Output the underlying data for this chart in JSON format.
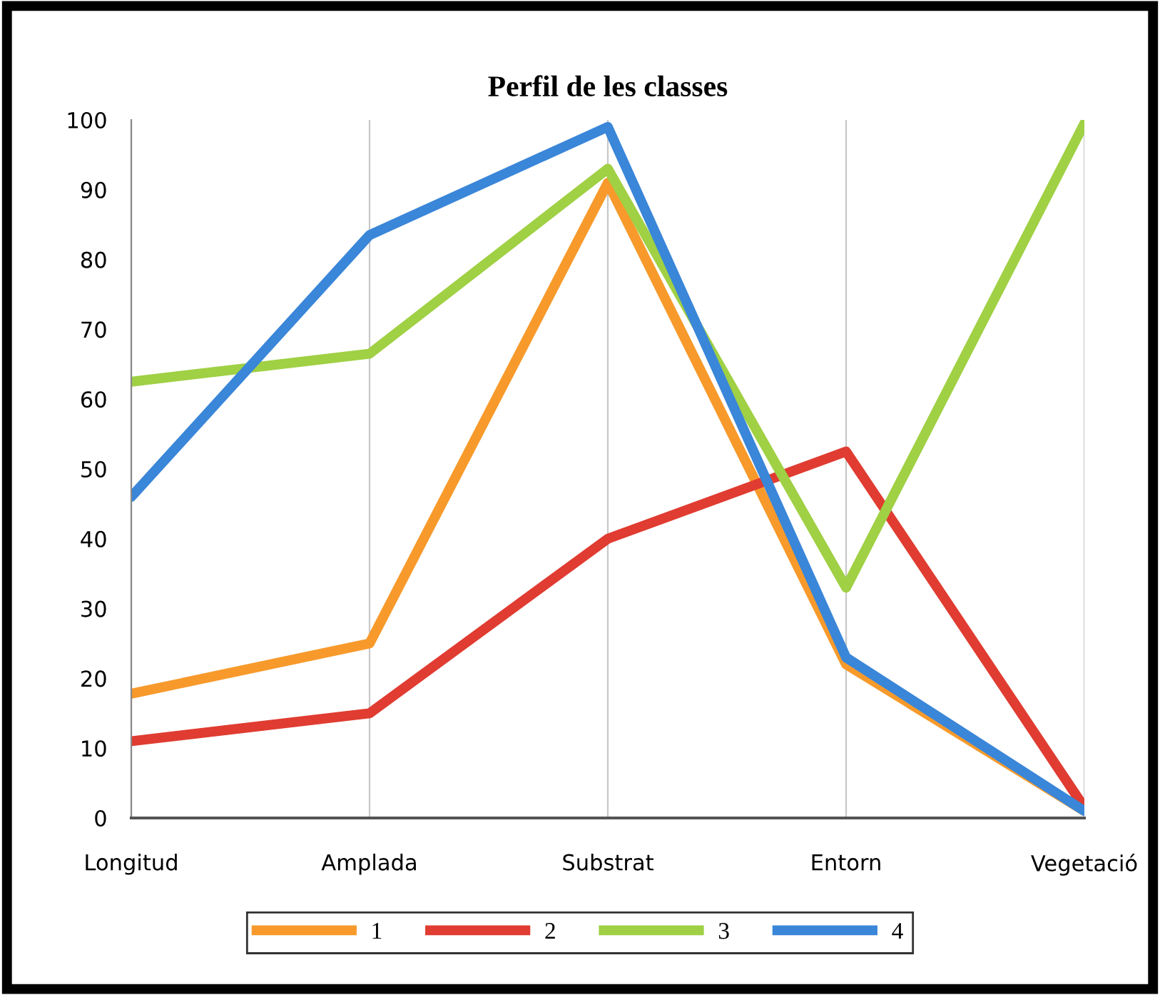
{
  "chart_data": {
    "type": "line",
    "title": "Perfil de les classes",
    "categories": [
      "Longitud",
      "Amplada",
      "Substrat",
      "Entorn",
      "Vegetació"
    ],
    "series": [
      {
        "name": "1",
        "color": "#f79a2b",
        "values": [
          17.8,
          25,
          91,
          22,
          1
        ]
      },
      {
        "name": "2",
        "color": "#e03c31",
        "values": [
          11,
          15,
          40,
          52.5,
          1.5
        ]
      },
      {
        "name": "3",
        "color": "#a0d044",
        "values": [
          62.5,
          66.5,
          93,
          33,
          99.5
        ]
      },
      {
        "name": "4",
        "color": "#3a86d8",
        "values": [
          46,
          83.5,
          99,
          23,
          1
        ]
      }
    ],
    "ylim": [
      0,
      100
    ],
    "yticks": [
      0,
      10,
      20,
      30,
      40,
      50,
      60,
      70,
      80,
      90,
      100
    ],
    "grid": "x",
    "legend": "bottom",
    "marker": "none",
    "line_style": "solid"
  }
}
